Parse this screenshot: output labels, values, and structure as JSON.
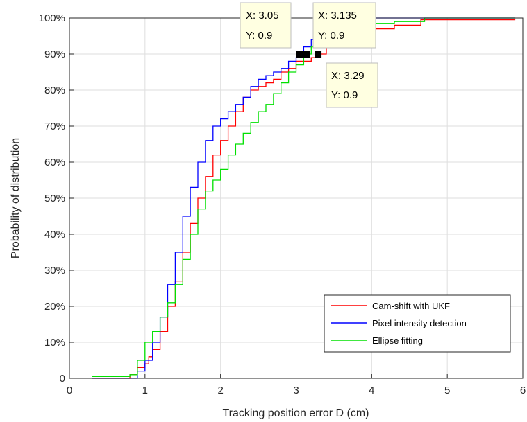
{
  "chart_data": {
    "type": "line",
    "title": "",
    "xlabel": "Tracking position error D (cm)",
    "ylabel": "Probability of distribution",
    "xlim": [
      0,
      6
    ],
    "ylim": [
      0,
      1
    ],
    "xticks": [
      0,
      1,
      2,
      3,
      4,
      5,
      6
    ],
    "xtick_labels": [
      "0",
      "1",
      "2",
      "3",
      "4",
      "5",
      "6"
    ],
    "yticks": [
      0,
      0.1,
      0.2,
      0.3,
      0.4,
      0.5,
      0.6,
      0.7,
      0.8,
      0.9,
      1.0
    ],
    "ytick_labels": [
      "0",
      "10%",
      "20%",
      "30%",
      "40%",
      "50%",
      "60%",
      "70%",
      "80%",
      "90%",
      "100%"
    ],
    "grid": true,
    "legend_position": "lower-right",
    "series": [
      {
        "name": "Cam-shift with UKF",
        "color": "#ff0000",
        "x": [
          0.3,
          0.75,
          0.8,
          0.9,
          1.0,
          1.05,
          1.1,
          1.2,
          1.3,
          1.4,
          1.5,
          1.6,
          1.7,
          1.8,
          1.9,
          2.0,
          2.1,
          2.2,
          2.3,
          2.4,
          2.5,
          2.6,
          2.7,
          2.8,
          2.9,
          3.0,
          3.1,
          3.2,
          3.3,
          3.4,
          3.5,
          3.6,
          3.7,
          3.8,
          4.0,
          4.3,
          4.6,
          4.65,
          5.0,
          5.5,
          5.9
        ],
        "y": [
          0,
          0,
          0.01,
          0.03,
          0.04,
          0.06,
          0.08,
          0.13,
          0.2,
          0.27,
          0.35,
          0.43,
          0.5,
          0.56,
          0.62,
          0.66,
          0.7,
          0.74,
          0.78,
          0.8,
          0.81,
          0.82,
          0.83,
          0.85,
          0.86,
          0.88,
          0.88,
          0.89,
          0.9,
          0.94,
          0.96,
          0.965,
          0.97,
          0.97,
          0.97,
          0.98,
          0.98,
          0.995,
          0.995,
          0.995,
          0.995
        ]
      },
      {
        "name": "Pixel intensity detection",
        "color": "#0000ff",
        "x": [
          0.3,
          0.85,
          0.9,
          1.0,
          1.1,
          1.2,
          1.3,
          1.4,
          1.5,
          1.6,
          1.7,
          1.8,
          1.9,
          2.0,
          2.1,
          2.2,
          2.3,
          2.4,
          2.5,
          2.6,
          2.7,
          2.8,
          2.9,
          3.0,
          3.05,
          3.1,
          3.2,
          3.3,
          3.5,
          3.7,
          3.9,
          4.0,
          5.9
        ],
        "y": [
          0,
          0,
          0.02,
          0.05,
          0.1,
          0.17,
          0.26,
          0.35,
          0.45,
          0.53,
          0.6,
          0.66,
          0.7,
          0.72,
          0.74,
          0.76,
          0.78,
          0.81,
          0.83,
          0.84,
          0.85,
          0.86,
          0.88,
          0.89,
          0.9,
          0.92,
          0.94,
          0.96,
          0.98,
          0.99,
          0.995,
          1.0,
          1.0
        ]
      },
      {
        "name": "Ellipse fitting",
        "color": "#00e000",
        "x": [
          0.3,
          0.75,
          0.8,
          0.9,
          1.0,
          1.1,
          1.2,
          1.3,
          1.4,
          1.5,
          1.6,
          1.7,
          1.8,
          1.9,
          2.0,
          2.1,
          2.2,
          2.3,
          2.4,
          2.5,
          2.6,
          2.7,
          2.8,
          2.9,
          3.0,
          3.1,
          3.2,
          3.3,
          3.4,
          3.5,
          3.6,
          3.7,
          3.8,
          4.0,
          4.3,
          4.7,
          5.0,
          5.9
        ],
        "y": [
          0.005,
          0.005,
          0.01,
          0.05,
          0.1,
          0.13,
          0.17,
          0.21,
          0.26,
          0.33,
          0.4,
          0.47,
          0.52,
          0.55,
          0.58,
          0.62,
          0.65,
          0.68,
          0.71,
          0.74,
          0.76,
          0.79,
          0.82,
          0.85,
          0.87,
          0.9,
          0.92,
          0.94,
          0.95,
          0.96,
          0.965,
          0.97,
          0.98,
          0.985,
          0.99,
          1.0,
          1.0,
          1.0
        ]
      }
    ],
    "markers": [
      {
        "x": 3.05,
        "y": 0.9
      },
      {
        "x": 3.135,
        "y": 0.9
      },
      {
        "x": 3.29,
        "y": 0.9
      }
    ],
    "datatips": [
      {
        "x_text": "X: 3.05",
        "y_text": "Y: 0.9",
        "anchor": "upper-left"
      },
      {
        "x_text": "X: 3.135",
        "y_text": "Y: 0.9",
        "anchor": "upper-right"
      },
      {
        "x_text": "X: 3.29",
        "y_text": "Y: 0.9",
        "anchor": "lower-right"
      }
    ]
  }
}
